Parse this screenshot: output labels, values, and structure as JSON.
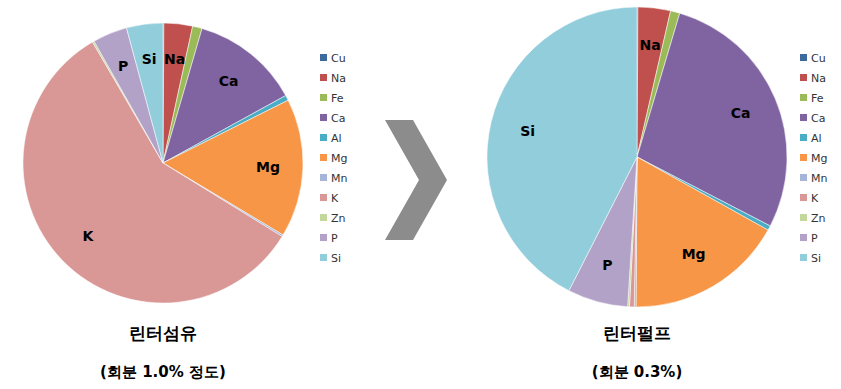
{
  "chart_data": [
    {
      "type": "pie",
      "title": "린터섬유",
      "subtitle": "(회분 1.0% 정도)",
      "categories": [
        "Cu",
        "Na",
        "Fe",
        "Ca",
        "Al",
        "Mg",
        "Mn",
        "K",
        "Zn",
        "P",
        "Si"
      ],
      "values": [
        0.1,
        3.3,
        1.1,
        12.5,
        0.6,
        16,
        0.2,
        57.8,
        0.2,
        4,
        4.2
      ],
      "colors": [
        "#3d6a9e",
        "#c0504d",
        "#9bbb59",
        "#8064a2",
        "#4bacc6",
        "#f79646",
        "#a5b5d8",
        "#d99795",
        "#c3d69b",
        "#b2a2c7",
        "#92cddc"
      ],
      "legend": "right"
    },
    {
      "type": "pie",
      "title": "린터펄프",
      "subtitle": "(회분 0.3%)",
      "categories": [
        "Cu",
        "Na",
        "Fe",
        "Ca",
        "Al",
        "Mg",
        "Mn",
        "K",
        "Zn",
        "P",
        "Si"
      ],
      "values": [
        0.1,
        3.5,
        1,
        28,
        0.5,
        17,
        0.2,
        0.5,
        0.2,
        6.5,
        42.5
      ],
      "colors": [
        "#3d6a9e",
        "#c0504d",
        "#9bbb59",
        "#8064a2",
        "#4bacc6",
        "#f79646",
        "#a5b5d8",
        "#d99795",
        "#c3d69b",
        "#b2a2c7",
        "#92cddc"
      ],
      "legend": "right"
    }
  ]
}
